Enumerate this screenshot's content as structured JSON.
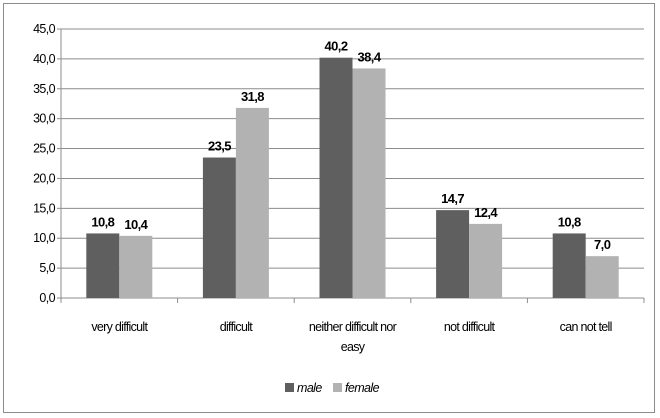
{
  "chart_data": {
    "type": "bar",
    "categories": [
      "very difficult",
      "difficult",
      "neither difficult nor easy",
      "not difficult",
      "can not tell"
    ],
    "category_lines": [
      [
        "very difficult"
      ],
      [
        "difficult"
      ],
      [
        "neither difficult nor",
        "easy"
      ],
      [
        "not difficult"
      ],
      [
        "can not tell"
      ]
    ],
    "series": [
      {
        "name": "male",
        "values": [
          10.8,
          23.5,
          40.2,
          14.7,
          10.8
        ],
        "labels": [
          "10,8",
          "23,5",
          "40,2",
          "14,7",
          "10,8"
        ],
        "color": "#5f5f5f"
      },
      {
        "name": "female",
        "values": [
          10.4,
          31.8,
          38.4,
          12.4,
          7.0
        ],
        "labels": [
          "10,4",
          "31,8",
          "38,4",
          "12,4",
          "7,0"
        ],
        "color": "#b2b2b2"
      }
    ],
    "ylim": [
      0,
      45
    ],
    "yticks": [
      0,
      5,
      10,
      15,
      20,
      25,
      30,
      35,
      40,
      45
    ],
    "ytick_labels": [
      "0,0",
      "5,0",
      "10,0",
      "15,0",
      "20,0",
      "25,0",
      "30,0",
      "35,0",
      "40,0",
      "45,0"
    ],
    "grid": true,
    "legend": "bottom",
    "colors": {
      "gridline": "#8c8c8c",
      "axis": "#8c8c8c"
    }
  }
}
